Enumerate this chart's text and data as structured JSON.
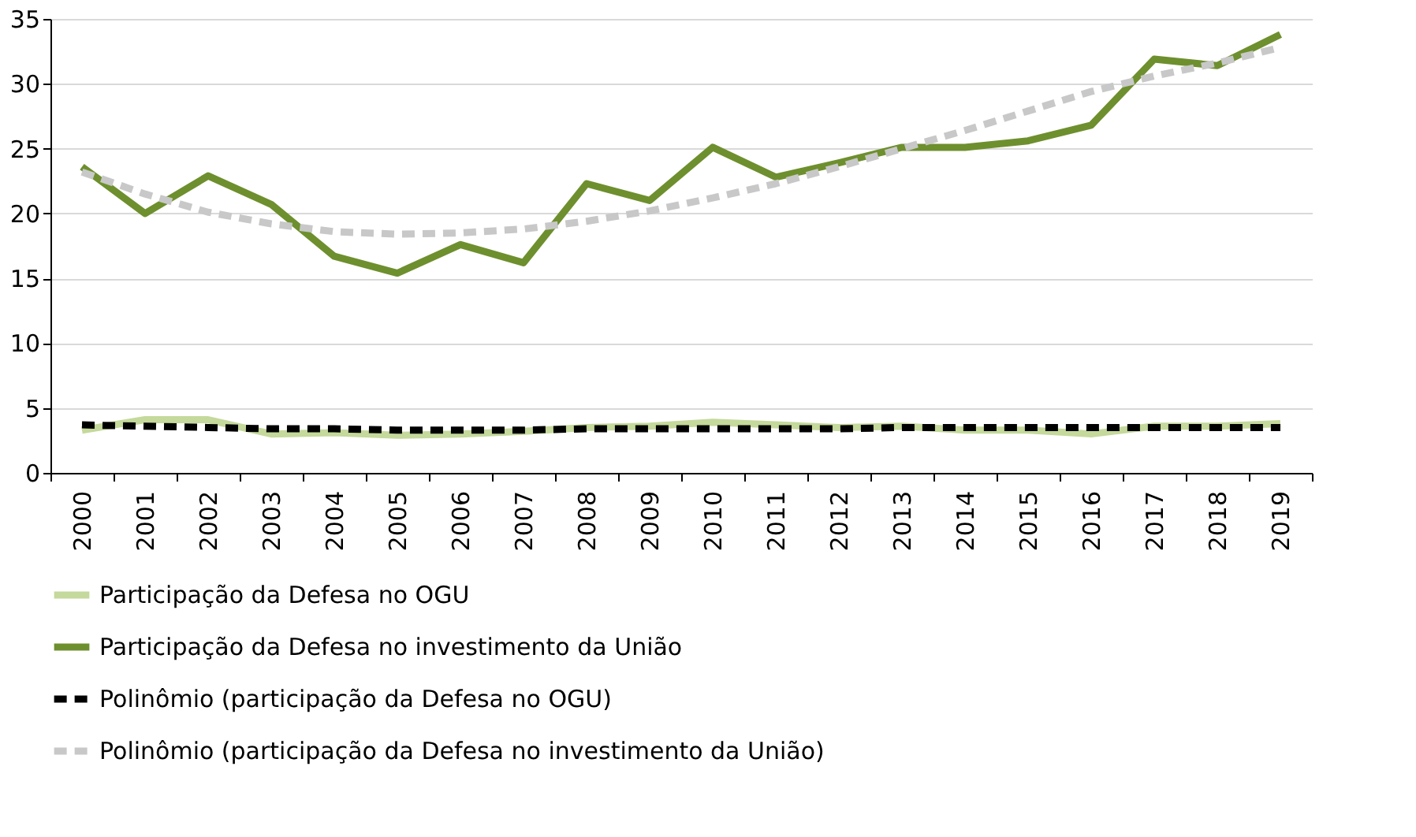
{
  "chart_data": {
    "type": "line",
    "categories": [
      "2000",
      "2001",
      "2002",
      "2003",
      "2004",
      "2005",
      "2006",
      "2007",
      "2008",
      "2009",
      "2010",
      "2011",
      "2012",
      "2013",
      "2014",
      "2015",
      "2016",
      "2017",
      "2018",
      "2019"
    ],
    "ylim": [
      0,
      35
    ],
    "yticks": [
      0,
      5,
      10,
      15,
      20,
      25,
      30,
      35
    ],
    "grid": "y",
    "legend": "bottom",
    "marker": "none",
    "series": [
      {
        "name": "Participação da Defesa no OGU",
        "color": "#c4d99b",
        "line_style": "solid",
        "values": [
          3.3,
          4.1,
          4.1,
          3.0,
          3.1,
          2.9,
          3.0,
          3.2,
          3.5,
          3.6,
          3.9,
          3.7,
          3.5,
          3.6,
          3.3,
          3.3,
          3.0,
          3.6,
          3.6,
          3.8
        ]
      },
      {
        "name": "Participação da Defesa no investimento da União",
        "color": "#6e8f2e",
        "line_style": "solid",
        "values": [
          23.6,
          20.0,
          22.9,
          20.7,
          16.7,
          15.4,
          17.6,
          16.2,
          22.3,
          21.0,
          25.1,
          22.8,
          23.9,
          25.1,
          25.1,
          25.6,
          26.8,
          31.9,
          31.4,
          33.8
        ]
      },
      {
        "name": "Polinômio (participação da Defesa no OGU)",
        "color": "#000000",
        "line_style": "dashed",
        "values": [
          3.7,
          3.6,
          3.5,
          3.4,
          3.4,
          3.3,
          3.3,
          3.3,
          3.4,
          3.4,
          3.4,
          3.4,
          3.4,
          3.5,
          3.5,
          3.5,
          3.5,
          3.5,
          3.5,
          3.5
        ]
      },
      {
        "name": "Polinômio (participação da Defesa no investimento da União)",
        "color": "#c8c8c8",
        "line_style": "dashed",
        "values": [
          23.2,
          21.5,
          20.1,
          19.2,
          18.6,
          18.4,
          18.5,
          18.8,
          19.4,
          20.2,
          21.2,
          22.3,
          23.6,
          25.0,
          26.4,
          27.9,
          29.4,
          30.6,
          31.6,
          32.8
        ]
      }
    ]
  }
}
